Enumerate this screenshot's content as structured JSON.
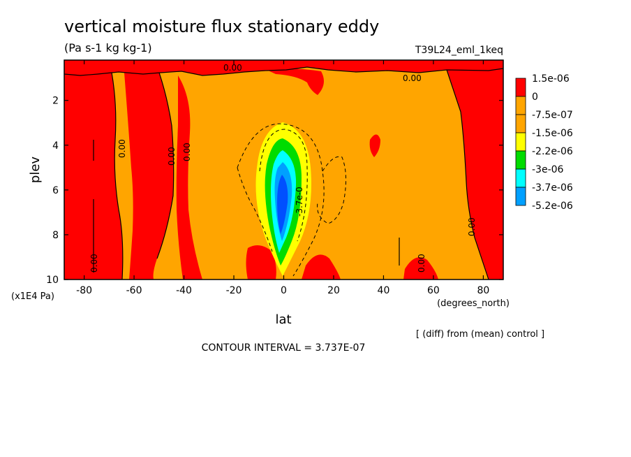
{
  "chart_data": {
    "type": "heatmap",
    "title": "vertical moisture flux stationary eddy",
    "units": "(Pa s-1 kg kg-1)",
    "run_label": "T39L24_eml_1keq",
    "xlabel": "lat",
    "x_units": "(degrees_north)",
    "ylabel": "plev",
    "y_units": "(x1E4 Pa)",
    "xlim": [
      -88,
      88
    ],
    "ylim": [
      10,
      0.2
    ],
    "x_ticks": [
      "-80",
      "-60",
      "-40",
      "-20",
      "0",
      "20",
      "40",
      "60",
      "80"
    ],
    "x_tick_values": [
      -80,
      -60,
      -40,
      -20,
      0,
      20,
      40,
      60,
      80
    ],
    "y_ticks": [
      "2",
      "4",
      "6",
      "8",
      "10"
    ],
    "y_tick_values": [
      2,
      4,
      6,
      8,
      10
    ],
    "legend_levels": [
      "1.5e-06",
      "0",
      "-7.5e-07",
      "-1.5e-06",
      "-2.2e-06",
      "-3e-06",
      "-3.7e-06",
      "-5.2e-06"
    ],
    "legend_colors": [
      "#ff0000",
      "#ffa500",
      "#ffa500",
      "#ffff00",
      "#00dc00",
      "#00ffff",
      "#00a0ff",
      "#0050ff"
    ],
    "contour_labels": [
      "0.00",
      "0.00",
      "0.00",
      "0.00",
      "0.00",
      "0.00",
      "0.00",
      "0.00",
      "-3.7e-0"
    ],
    "legend_placement": "right",
    "note": "[ (diff) from (mean) control ]",
    "contour_interval": "CONTOUR INTERVAL = 3.737E-07"
  }
}
